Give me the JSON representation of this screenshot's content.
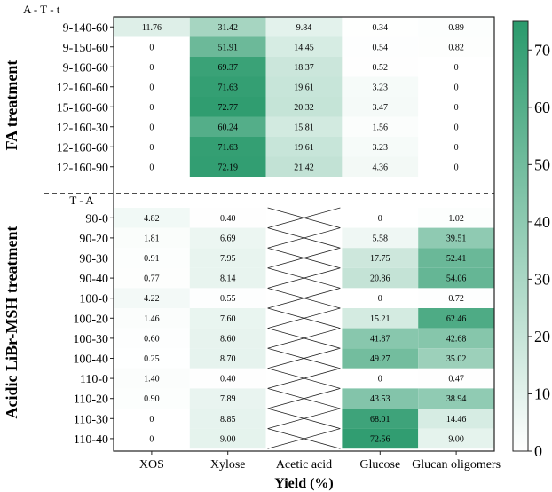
{
  "chart_data": {
    "type": "heatmap",
    "xlabel": "Yield (%)",
    "columns": [
      "XOS",
      "Xylose",
      "Acetic acid",
      "Glucose",
      "Glucan oligomers"
    ],
    "colorbar": {
      "min": 0,
      "max": 75,
      "ticks": [
        0,
        10,
        20,
        30,
        40,
        50,
        60,
        70
      ],
      "low_color": "#ffffff",
      "high_color": "#2a9a6c"
    },
    "groups": [
      {
        "name": "FA treatment",
        "header": "A - T - t",
        "rows": [
          {
            "label": "9-140-60",
            "values": [
              11.76,
              31.42,
              9.84,
              0.34,
              0.89
            ]
          },
          {
            "label": "9-150-60",
            "values": [
              0,
              51.91,
              14.45,
              0.54,
              0.82
            ]
          },
          {
            "label": "9-160-60",
            "values": [
              0,
              69.37,
              18.37,
              0.52,
              0
            ]
          },
          {
            "label": "12-160-60",
            "values": [
              0,
              71.63,
              19.61,
              3.23,
              0
            ]
          },
          {
            "label": "15-160-60",
            "values": [
              0,
              72.77,
              20.32,
              3.47,
              0
            ]
          },
          {
            "label": "12-160-30",
            "values": [
              0,
              60.24,
              15.81,
              1.56,
              0
            ]
          },
          {
            "label": "12-160-60",
            "values": [
              0,
              71.63,
              19.61,
              3.23,
              0
            ]
          },
          {
            "label": "12-160-90",
            "values": [
              0,
              72.19,
              21.42,
              4.36,
              0
            ]
          }
        ]
      },
      {
        "name": "Acidic LiBr-MSH treatment",
        "header": "T - A",
        "rows": [
          {
            "label": "90-0",
            "values": [
              4.82,
              0.4,
              null,
              0,
              1.02
            ]
          },
          {
            "label": "90-20",
            "values": [
              1.81,
              6.69,
              null,
              5.58,
              39.51
            ]
          },
          {
            "label": "90-30",
            "values": [
              0.91,
              7.95,
              null,
              17.75,
              52.41
            ]
          },
          {
            "label": "90-40",
            "values": [
              0.77,
              8.14,
              null,
              20.86,
              54.06
            ]
          },
          {
            "label": "100-0",
            "values": [
              4.22,
              0.55,
              null,
              0,
              0.72
            ]
          },
          {
            "label": "100-20",
            "values": [
              1.46,
              7.6,
              null,
              15.21,
              62.46
            ]
          },
          {
            "label": "100-30",
            "values": [
              0.6,
              8.6,
              null,
              41.87,
              42.68
            ]
          },
          {
            "label": "100-40",
            "values": [
              0.25,
              8.7,
              null,
              49.27,
              35.02
            ]
          },
          {
            "label": "110-0",
            "values": [
              1.4,
              0.4,
              null,
              0,
              0.47
            ]
          },
          {
            "label": "110-20",
            "values": [
              0.9,
              7.89,
              null,
              43.53,
              38.94
            ]
          },
          {
            "label": "110-30",
            "values": [
              0,
              8.85,
              null,
              68.01,
              14.46
            ]
          },
          {
            "label": "110-40",
            "values": [
              0,
              9.0,
              null,
              72.56,
              9.0
            ]
          }
        ]
      }
    ]
  }
}
